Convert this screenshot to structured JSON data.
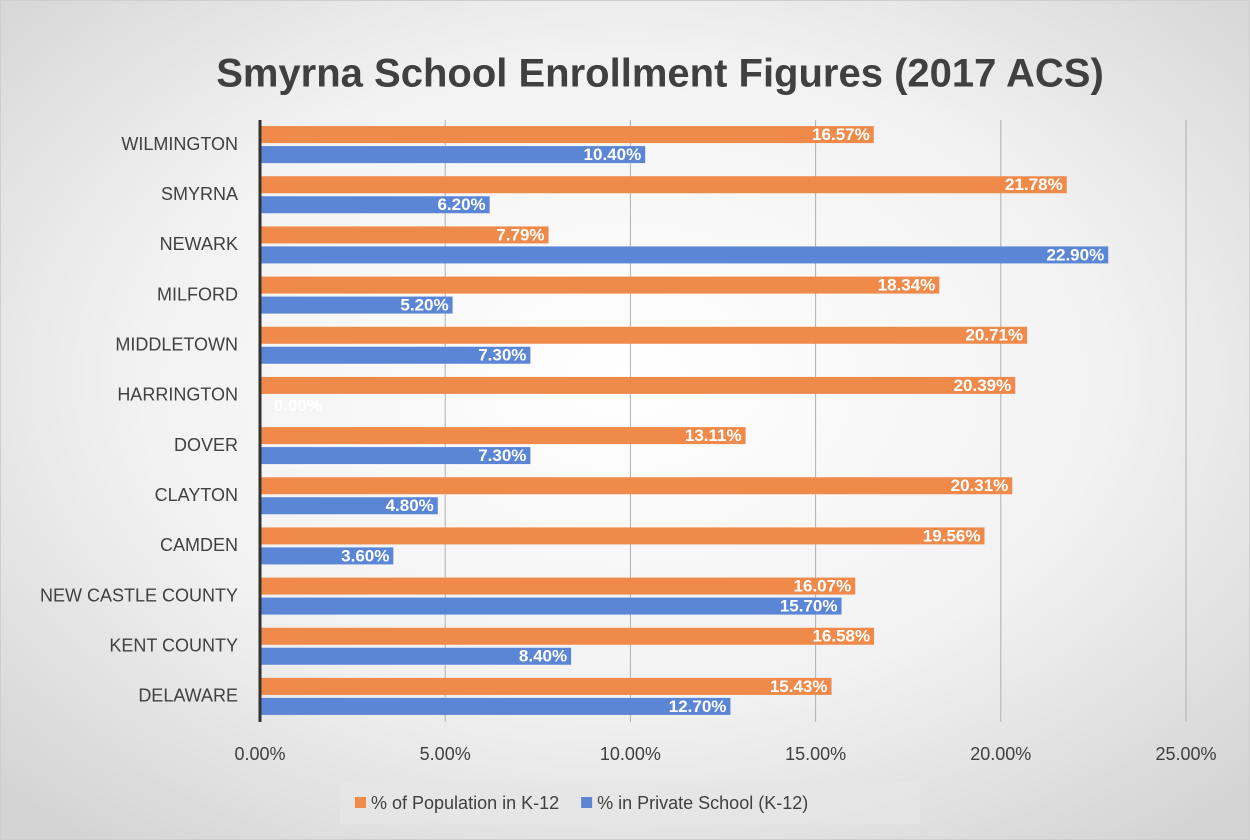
{
  "chart_data": {
    "type": "hbar",
    "title": "Smyrna School Enrollment Figures (2017 ACS)",
    "categories": [
      "WILMINGTON",
      "SMYRNA",
      "NEWARK",
      "MILFORD",
      "MIDDLETOWN",
      "HARRINGTON",
      "DOVER",
      "CLAYTON",
      "CAMDEN",
      "NEW CASTLE COUNTY",
      "KENT COUNTY",
      "DELAWARE"
    ],
    "series": [
      {
        "name": "% of Population in K-12",
        "color": "#ef8a4b",
        "values": [
          16.57,
          21.78,
          7.79,
          18.34,
          20.71,
          20.39,
          13.11,
          20.31,
          19.56,
          16.07,
          16.58,
          15.43
        ],
        "value_labels": [
          "16.57%",
          "21.78%",
          "7.79%",
          "18.34%",
          "20.71%",
          "20.39%",
          "13.11%",
          "20.31%",
          "19.56%",
          "16.07%",
          "16.58%",
          "15.43%"
        ]
      },
      {
        "name": "% in Private School (K-12)",
        "color": "#5b86d6",
        "values": [
          10.4,
          6.2,
          22.9,
          5.2,
          7.3,
          0,
          7.3,
          4.8,
          3.6,
          15.7,
          8.4,
          12.7
        ],
        "value_labels": [
          "10.40%",
          "6.20%",
          "22.90%",
          "5.20%",
          "7.30%",
          "0.00%",
          "7.30%",
          "4.80%",
          "3.60%",
          "15.70%",
          "8.40%",
          "12.70%"
        ]
      }
    ],
    "xlim": [
      0,
      25
    ],
    "xticks": [
      {
        "value": 0,
        "label": "0.00%"
      },
      {
        "value": 5,
        "label": "5.00%"
      },
      {
        "value": 10,
        "label": "10.00%"
      },
      {
        "value": 15,
        "label": "15.00%"
      },
      {
        "value": 20,
        "label": "20.00%"
      },
      {
        "value": 25,
        "label": "25.00%"
      }
    ],
    "grid": true,
    "legend": "bottom"
  }
}
